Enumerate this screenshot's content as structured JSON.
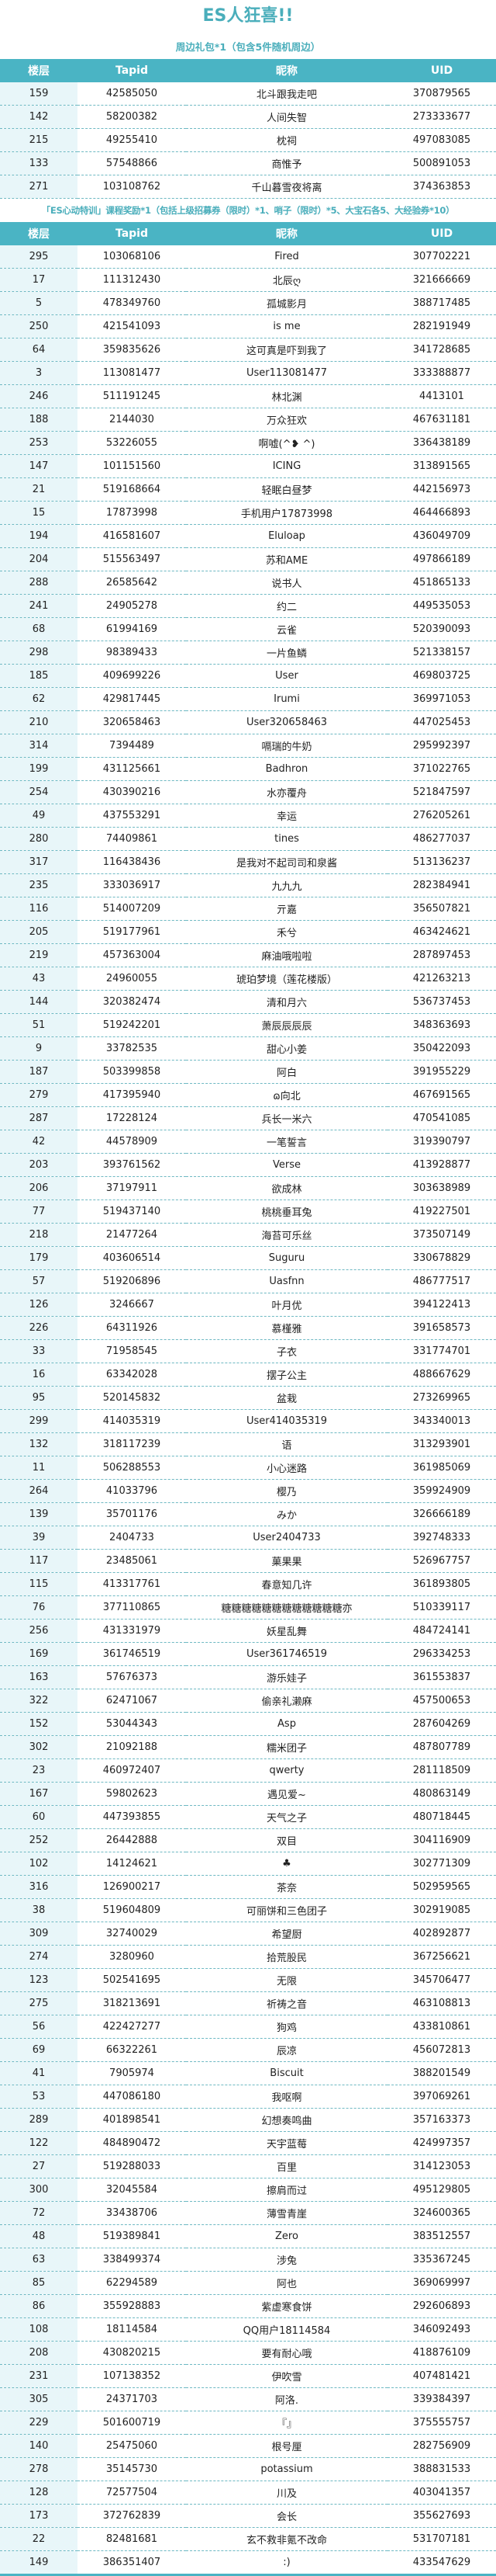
{
  "title": "ES人狂喜!!",
  "colors": {
    "accent": "#4ab4c4",
    "floor_bg": "#e8f6f9",
    "title": "#4aaebb"
  },
  "headers": [
    "楼层",
    "Tapid",
    "昵称",
    "UID"
  ],
  "section1": {
    "subtitle": "周边礼包*1（包含5件随机周边）",
    "rows": [
      [
        "159",
        "42585050",
        "北斗跟我走吧",
        "370879565"
      ],
      [
        "142",
        "58200382",
        "人间失智",
        "273333677"
      ],
      [
        "215",
        "49255410",
        "枕祠",
        "497083085"
      ],
      [
        "133",
        "57548866",
        "商惟予",
        "500891053"
      ],
      [
        "271",
        "103108762",
        "千山暮雪夜将离",
        "374363853"
      ]
    ]
  },
  "section2": {
    "subtitle": "「ES心动特训」课程奖励*1（包括上级招募券（限时）*1、哨子（限时）*5、大宝石各5、大经验券*10）",
    "rows": [
      [
        "295",
        "103068106",
        "Fired",
        "307702221"
      ],
      [
        "17",
        "111312430",
        "北辰ღ",
        "321666669"
      ],
      [
        "5",
        "478349760",
        "孤城影月",
        "388717485"
      ],
      [
        "250",
        "421541093",
        "is me",
        "282191949"
      ],
      [
        "64",
        "359835626",
        "这可真是吓到我了",
        "341728685"
      ],
      [
        "3",
        "113081477",
        "User113081477",
        "333388877"
      ],
      [
        "246",
        "511191245",
        "林北渊",
        "4413101"
      ],
      [
        "188",
        "2144030",
        "万众狂欢",
        "467631181"
      ],
      [
        "253",
        "53226055",
        "啊嘘(^❥ ^)",
        "336438189"
      ],
      [
        "147",
        "101151560",
        "ICING",
        "313891565"
      ],
      [
        "21",
        "519168664",
        "轻眠白昼梦",
        "442156973"
      ],
      [
        "15",
        "17873998",
        "手机用户17873998",
        "464466893"
      ],
      [
        "194",
        "416581607",
        "Eluloap",
        "436049709"
      ],
      [
        "204",
        "515563497",
        "苏和AME",
        "497866189"
      ],
      [
        "288",
        "26585642",
        "说书人",
        "451865133"
      ],
      [
        "241",
        "24905278",
        "约二",
        "449535053"
      ],
      [
        "68",
        "61994169",
        "云雀",
        "520390093"
      ],
      [
        "298",
        "98389433",
        "一片鱼鳞",
        "521338157"
      ],
      [
        "185",
        "409699226",
        "User",
        "469803725"
      ],
      [
        "62",
        "429817445",
        "Irumi",
        "369971053"
      ],
      [
        "210",
        "320658463",
        "User320658463",
        "447025453"
      ],
      [
        "314",
        "7394489",
        "嗝瑞的牛奶",
        "295992397"
      ],
      [
        "199",
        "431125661",
        "Badhron",
        "371022765"
      ],
      [
        "254",
        "430390216",
        "水亦覆舟",
        "521847597"
      ],
      [
        "49",
        "437553291",
        "幸运",
        "276205261"
      ],
      [
        "280",
        "74409861",
        "tines",
        "486277037"
      ],
      [
        "317",
        "116438436",
        "是我对不起司司和泉酱",
        "513136237"
      ],
      [
        "235",
        "333036917",
        "九九九",
        "282384941"
      ],
      [
        "116",
        "514007209",
        "亓嘉",
        "356507821"
      ],
      [
        "205",
        "519177961",
        "禾兮",
        "463424621"
      ],
      [
        "219",
        "457363004",
        "麻油哦啦啦",
        "287897453"
      ],
      [
        "43",
        "24960055",
        "琥珀梦境（莲花楼版）",
        "421263213"
      ],
      [
        "144",
        "320382474",
        "清和月六",
        "536737453"
      ],
      [
        "51",
        "519242201",
        "萧辰辰辰辰",
        "348363693"
      ],
      [
        "9",
        "33782535",
        "甜心小姜",
        "350422093"
      ],
      [
        "187",
        "503399858",
        "阿白",
        "391955229"
      ],
      [
        "279",
        "417395940",
        "ɷ向北",
        "467691565"
      ],
      [
        "287",
        "17228124",
        "兵长一米六",
        "470541085"
      ],
      [
        "42",
        "44578909",
        "一笔誓言",
        "319390797"
      ],
      [
        "203",
        "393761562",
        "Verse",
        "413928877"
      ],
      [
        "206",
        "37197911",
        "欲成林",
        "303638989"
      ],
      [
        "77",
        "519437140",
        "桃桃垂耳兔",
        "419227501"
      ],
      [
        "218",
        "21477264",
        "海苔可乐丝",
        "373507149"
      ],
      [
        "179",
        "403606514",
        "Suguru",
        "330678829"
      ],
      [
        "57",
        "519206896",
        "Uasfnn",
        "486777517"
      ],
      [
        "126",
        "3246667",
        "叶月优",
        "394122413"
      ],
      [
        "226",
        "64311926",
        "慕槿雅",
        "391658573"
      ],
      [
        "33",
        "71958545",
        "子衣",
        "331774701"
      ],
      [
        "16",
        "63342028",
        "摆子公主",
        "488667629"
      ],
      [
        "95",
        "520145832",
        "盆栽",
        "273269965"
      ],
      [
        "299",
        "414035319",
        "User414035319",
        "343340013"
      ],
      [
        "132",
        "318117239",
        "语",
        "313293901"
      ],
      [
        "11",
        "506288553",
        "小心迷路",
        "361985069"
      ],
      [
        "264",
        "41033796",
        "樱乃",
        "359924909"
      ],
      [
        "139",
        "35701176",
        "みか",
        "326666189"
      ],
      [
        "39",
        "2404733",
        "User2404733",
        "392748333"
      ],
      [
        "117",
        "23485061",
        "菓果果",
        "526967757"
      ],
      [
        "115",
        "413317761",
        "春意知几许",
        "361893805"
      ],
      [
        "76",
        "377110865",
        "糖糖糖糖糖糖糖糖糖糖糖糖亦",
        "510339117"
      ],
      [
        "256",
        "431331979",
        "妖星乱舞",
        "484724141"
      ],
      [
        "169",
        "361746519",
        "User361746519",
        "296334253"
      ],
      [
        "163",
        "57676373",
        "游乐娃子",
        "361553837"
      ],
      [
        "322",
        "62471067",
        "偷亲礼濑麻",
        "457500653"
      ],
      [
        "152",
        "53044343",
        "Asp",
        "287604269"
      ],
      [
        "302",
        "21092188",
        "糯米团子",
        "487807789"
      ],
      [
        "23",
        "460972407",
        "qwerty",
        "281118509"
      ],
      [
        "167",
        "59802623",
        "遇见爱~",
        "480863149"
      ],
      [
        "60",
        "447393855",
        "天气之子",
        "480718445"
      ],
      [
        "252",
        "26442888",
        "双目",
        "304116909"
      ],
      [
        "102",
        "14124621",
        "♣",
        "302771309"
      ],
      [
        "316",
        "126900217",
        "茶奈",
        "502959565"
      ],
      [
        "38",
        "519604809",
        "可丽饼和三色团子",
        "302919085"
      ],
      [
        "309",
        "32740029",
        "希望厨",
        "402892877"
      ],
      [
        "274",
        "3280960",
        "拾荒股民",
        "367256621"
      ],
      [
        "123",
        "502541695",
        "无限",
        "345706477"
      ],
      [
        "275",
        "318213691",
        "祈祷之音",
        "463108813"
      ],
      [
        "56",
        "422427277",
        "狗鸡",
        "433810861"
      ],
      [
        "69",
        "66322261",
        "辰凉",
        "456072813"
      ],
      [
        "41",
        "7905974",
        "Biscuit",
        "388201549"
      ],
      [
        "53",
        "447086180",
        "我呕啊",
        "397069261"
      ],
      [
        "289",
        "401898541",
        "幻想奏鸣曲",
        "357163373"
      ],
      [
        "122",
        "484890472",
        "天宇蓝莓",
        "424997357"
      ],
      [
        "27",
        "519288033",
        "百里",
        "314123053"
      ],
      [
        "300",
        "32045584",
        "擦肩而过",
        "495129805"
      ],
      [
        "72",
        "33438706",
        "薄雪青崖",
        "324600365"
      ],
      [
        "48",
        "519389841",
        "Zero",
        "383512557"
      ],
      [
        "63",
        "338499374",
        "涉兔",
        "335367245"
      ],
      [
        "85",
        "62294589",
        "阿也",
        "369069997"
      ],
      [
        "86",
        "355928883",
        "紫虚寒食饼",
        "292606893"
      ],
      [
        "108",
        "18114584",
        "QQ用户18114584",
        "346092493"
      ],
      [
        "208",
        "430820215",
        "要有耐心哦",
        "418876109"
      ],
      [
        "231",
        "107138352",
        "伊吹雪",
        "407481421"
      ],
      [
        "305",
        "24371703",
        "阿洛.",
        "339384397"
      ],
      [
        "229",
        "501600719",
        "『』",
        "375555757"
      ],
      [
        "140",
        "25475060",
        "根号厘",
        "282756909"
      ],
      [
        "278",
        "35145730",
        "potassium",
        "388831533"
      ],
      [
        "128",
        "72577504",
        "川及",
        "403041357"
      ],
      [
        "173",
        "372762839",
        "会长",
        "355627693"
      ],
      [
        "22",
        "82481681",
        "玄不救非氪不改命",
        "531707181"
      ],
      [
        "149",
        "386351407",
        ":)",
        "433547629"
      ]
    ]
  }
}
